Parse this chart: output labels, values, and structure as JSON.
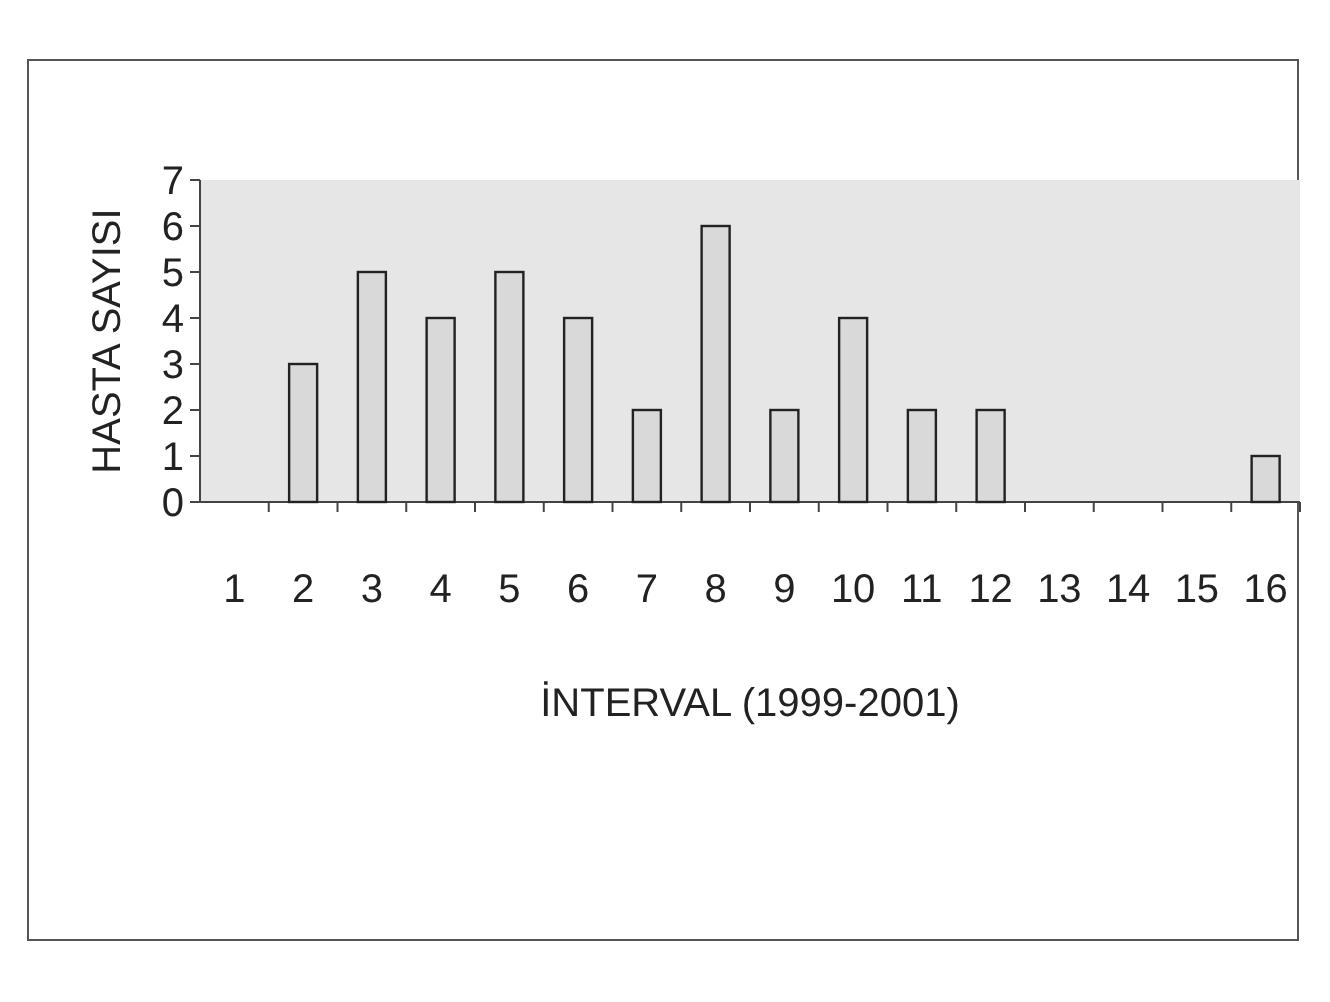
{
  "chart_data": {
    "type": "bar",
    "xlabel": "İNTERVAL (1999-2001)",
    "ylabel": "HASTA SAYISI",
    "categories": [
      "1",
      "2",
      "3",
      "4",
      "5",
      "6",
      "7",
      "8",
      "9",
      "10",
      "11",
      "12",
      "13",
      "14",
      "15",
      "16"
    ],
    "values": [
      0,
      3,
      5,
      4,
      5,
      4,
      2,
      6,
      2,
      4,
      2,
      2,
      0,
      0,
      0,
      1
    ],
    "color": "#d9d9d9",
    "ylim": [
      0,
      7
    ],
    "yticks": [
      0,
      1,
      2,
      3,
      4,
      5,
      6,
      7
    ]
  }
}
